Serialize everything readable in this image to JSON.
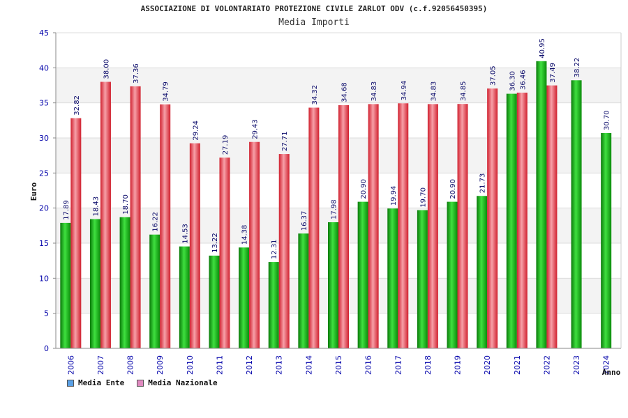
{
  "header": {
    "title": "ASSOCIAZIONE DI VOLONTARIATO PROTEZIONE CIVILE ZARLOT ODV (c.f.92056450395)",
    "subtitle": "Media Importi"
  },
  "legend": {
    "ente_label": "Media Ente",
    "nazionale_label": "Media Nazionale",
    "ente_color": "#5aa0e6",
    "nazionale_color": "#e08ac0"
  },
  "colors": {
    "green": "#1fb81f",
    "red": "#f05060",
    "axis_text": "#0000aa",
    "band": "#f3f3f3"
  },
  "chart_data": {
    "type": "bar",
    "title": "Media Importi",
    "xlabel": "Anno",
    "ylabel": "Euro",
    "ylim": [
      0,
      45
    ],
    "yticks": [
      0,
      5,
      10,
      15,
      20,
      25,
      30,
      35,
      40,
      45
    ],
    "categories": [
      "2006",
      "2007",
      "2008",
      "2009",
      "2010",
      "2011",
      "2012",
      "2013",
      "2014",
      "2015",
      "2016",
      "2017",
      "2018",
      "2019",
      "2020",
      "2021",
      "2022",
      "2023",
      "2024"
    ],
    "series": [
      {
        "name": "Media Ente",
        "values": [
          17.89,
          18.43,
          18.7,
          16.22,
          14.53,
          13.22,
          14.38,
          12.31,
          16.37,
          17.98,
          20.9,
          19.94,
          19.7,
          20.9,
          21.73,
          36.3,
          40.95,
          38.22,
          30.7
        ]
      },
      {
        "name": "Media Nazionale",
        "values": [
          32.82,
          38.0,
          37.36,
          34.79,
          29.24,
          27.19,
          29.43,
          27.71,
          34.32,
          34.68,
          34.83,
          34.94,
          34.83,
          34.85,
          37.05,
          36.46,
          37.49,
          null,
          null
        ]
      }
    ],
    "value_labels": {
      "ente": [
        "17.89",
        "18.43",
        "18.70",
        "16.22",
        "14.53",
        "13.22",
        "14.38",
        "12.31",
        "16.37",
        "17.98",
        "20.90",
        "19.94",
        "19.70",
        "20.90",
        "21.73",
        "36.30",
        "40.95",
        "38.22",
        "30.70"
      ],
      "nazionale": [
        "32.82",
        "38.00",
        "37.36",
        "34.79",
        "29.24",
        "27.19",
        "29.43",
        "27.71",
        "34.32",
        "34.68",
        "34.83",
        "34.94",
        "34.83",
        "34.85",
        "37.05",
        "36.46",
        "37.49",
        "",
        ""
      ]
    }
  }
}
